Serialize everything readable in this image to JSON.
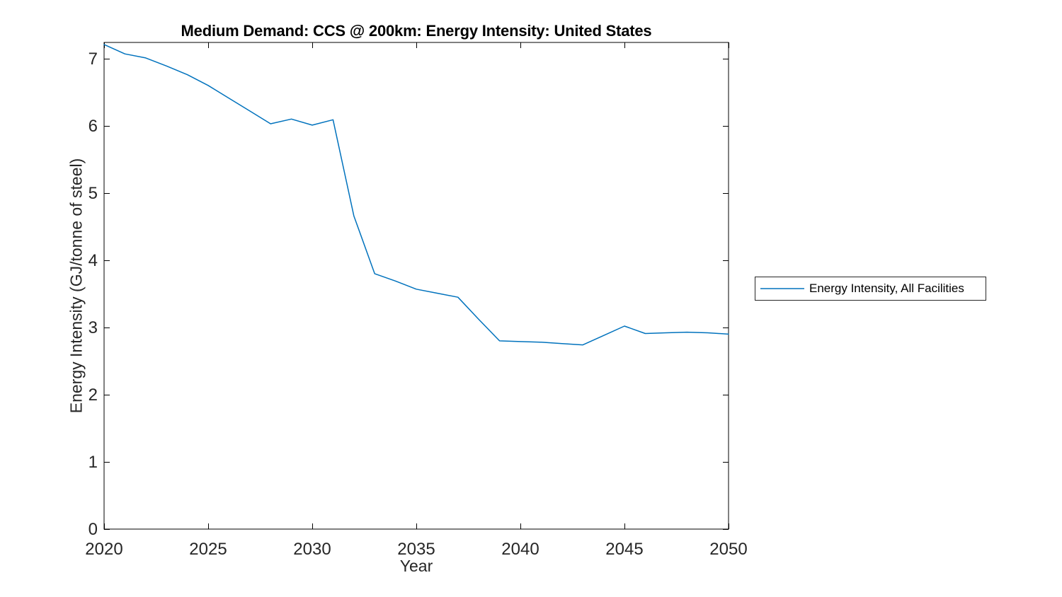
{
  "figure": {
    "background": "#ffffff"
  },
  "chart_data": {
    "type": "line",
    "title": "Medium Demand: CCS @ 200km: Energy Intensity: United States",
    "xlabel": "Year",
    "ylabel": "Energy Intensity (GJ/tonne of steel)",
    "xlim": [
      2020,
      2050
    ],
    "ylim": [
      0,
      7.24
    ],
    "xticks": [
      2020,
      2025,
      2030,
      2035,
      2040,
      2045,
      2050
    ],
    "yticks": [
      0,
      1,
      2,
      3,
      4,
      5,
      6,
      7
    ],
    "grid": false,
    "box": true,
    "tick_direction": "in",
    "axis_color": "#000000",
    "tick_label_color": "#262626",
    "legend": {
      "position": "outside-right",
      "entries": [
        {
          "label": "Energy Intensity, All Facilities",
          "color": "#0072BD",
          "line_style": "solid"
        }
      ]
    },
    "series": [
      {
        "name": "Energy Intensity, All Facilities",
        "color": "#0072BD",
        "x": [
          2020,
          2021,
          2022,
          2023,
          2024,
          2025,
          2026,
          2027,
          2028,
          2029,
          2030,
          2031,
          2032,
          2033,
          2034,
          2035,
          2036,
          2037,
          2038,
          2039,
          2040,
          2041,
          2042,
          2043,
          2044,
          2045,
          2046,
          2047,
          2048,
          2049,
          2050
        ],
        "values": [
          7.21,
          7.07,
          7.01,
          6.89,
          6.76,
          6.6,
          6.41,
          6.22,
          6.03,
          6.1,
          6.01,
          6.09,
          4.66,
          3.8,
          3.69,
          3.57,
          3.51,
          3.45,
          3.12,
          2.8,
          2.79,
          2.78,
          2.76,
          2.74,
          2.88,
          3.02,
          2.91,
          2.92,
          2.93,
          2.92,
          2.9
        ]
      }
    ]
  }
}
